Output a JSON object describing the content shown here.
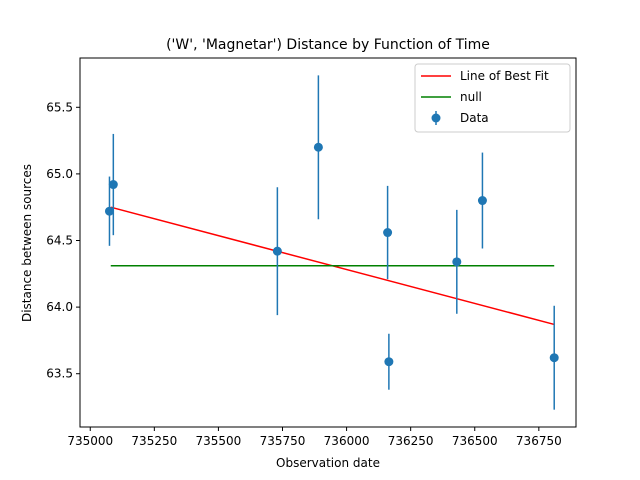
{
  "chart_data": {
    "type": "scatter",
    "title": "('W', 'Magnetar') Distance by Function of Time",
    "xlabel": "Observation date",
    "ylabel": "Distance between sources",
    "xlim": [
      734960,
      736895
    ],
    "ylim": [
      63.1,
      65.87
    ],
    "xticks": [
      735000,
      735250,
      735500,
      735750,
      736000,
      736250,
      736500,
      736750
    ],
    "yticks": [
      63.5,
      64.0,
      64.5,
      65.0,
      65.5
    ],
    "ytick_labels": [
      "63.5",
      "64.0",
      "64.5",
      "65.0",
      "65.5"
    ],
    "legend_position": "top-right",
    "series": [
      {
        "name": "Line of Best Fit",
        "kind": "line",
        "color": "#ff0000",
        "x": [
          735080,
          736810
        ],
        "y": [
          64.75,
          63.87
        ]
      },
      {
        "name": "null",
        "kind": "line",
        "color": "#008000",
        "x": [
          735080,
          736810
        ],
        "y": [
          64.31,
          64.31
        ]
      },
      {
        "name": "Data",
        "kind": "errorbar",
        "color": "#1f77b4",
        "x": [
          735075,
          735090,
          735730,
          735890,
          736160,
          736165,
          736430,
          736530,
          736810
        ],
        "y": [
          64.72,
          64.92,
          64.42,
          65.2,
          64.56,
          63.59,
          64.34,
          64.8,
          63.62
        ],
        "yerr": [
          0.26,
          0.38,
          0.48,
          0.54,
          0.35,
          0.21,
          0.39,
          0.36,
          0.39
        ]
      }
    ]
  }
}
